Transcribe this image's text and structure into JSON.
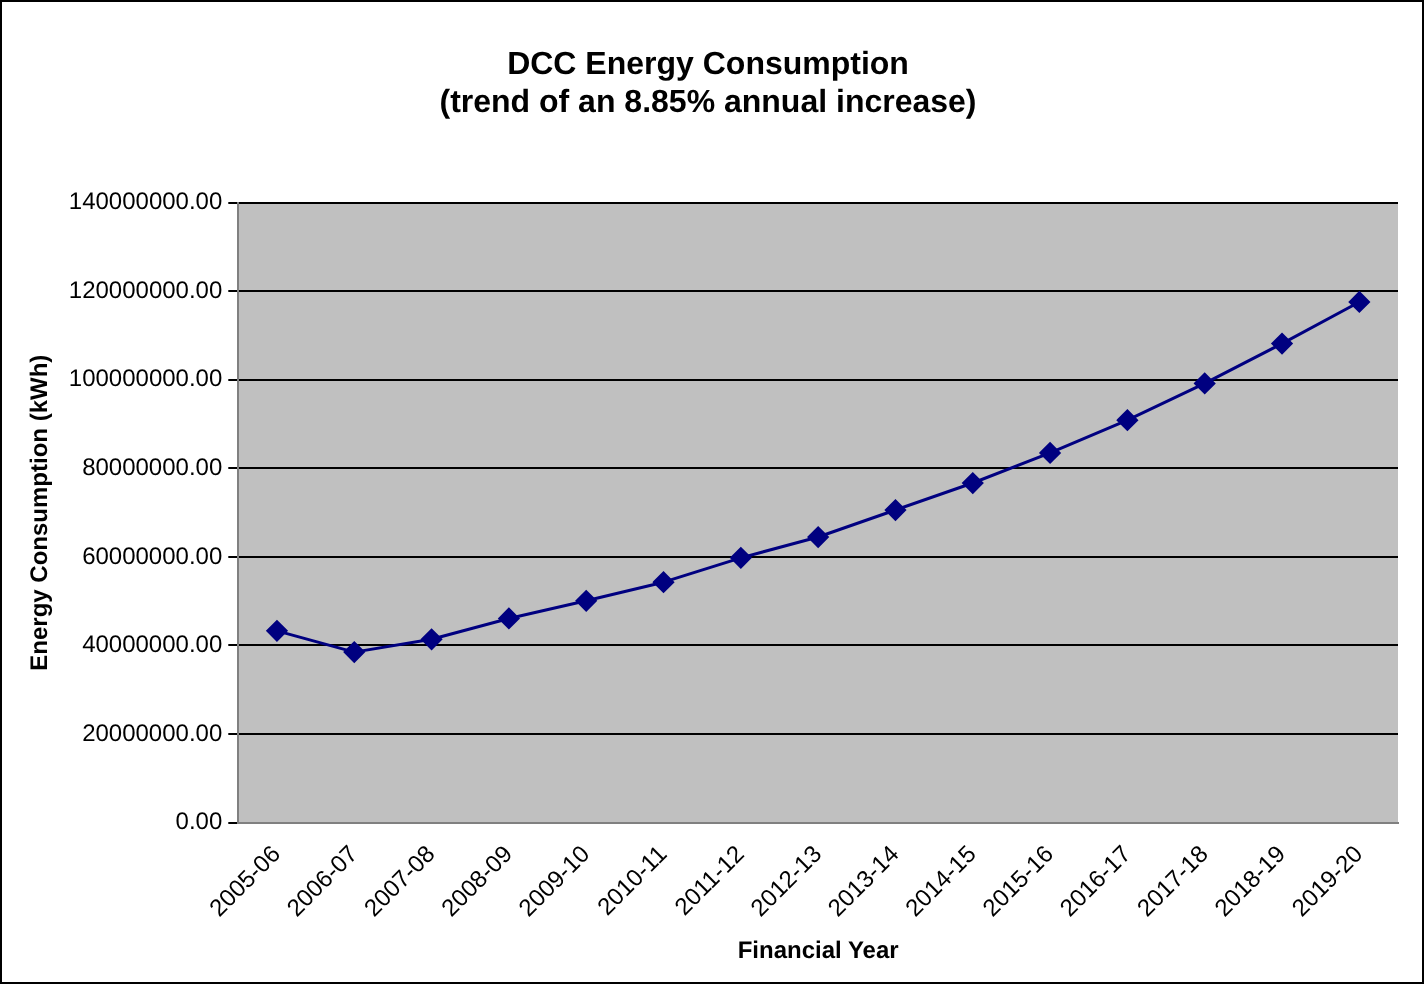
{
  "chart_data": {
    "type": "line",
    "title": "DCC Energy Consumption\n(trend of an 8.85% annual increase)",
    "xlabel": "Financial Year",
    "ylabel": "Energy Consumption (kWh)",
    "categories": [
      "2005-06",
      "2006-07",
      "2007-08",
      "2008-09",
      "2009-10",
      "2010-11",
      "2011-12",
      "2012-13",
      "2013-14",
      "2014-15",
      "2015-16",
      "2016-17",
      "2017-18",
      "2018-19",
      "2019-20"
    ],
    "series": [
      {
        "color": "#000080",
        "values": [
          43300000,
          38500000,
          41400000,
          46100000,
          50100000,
          54300000,
          59800000,
          64500000,
          70600000,
          76700000,
          83500000,
          90900000,
          99200000,
          108200000,
          117600000
        ]
      }
    ],
    "ylim": [
      0,
      140000000
    ],
    "yticks": [
      {
        "value": 0,
        "label": "0.00"
      },
      {
        "value": 20000000,
        "label": "20000000.00"
      },
      {
        "value": 40000000,
        "label": "40000000.00"
      },
      {
        "value": 60000000,
        "label": "60000000.00"
      },
      {
        "value": 80000000,
        "label": "80000000.00"
      },
      {
        "value": 100000000,
        "label": "100000000.00"
      },
      {
        "value": 120000000,
        "label": "120000000.00"
      },
      {
        "value": 140000000,
        "label": "140000000.00"
      }
    ],
    "grid": "y",
    "marker": "diamond",
    "line_style": "solid",
    "legend": false
  }
}
